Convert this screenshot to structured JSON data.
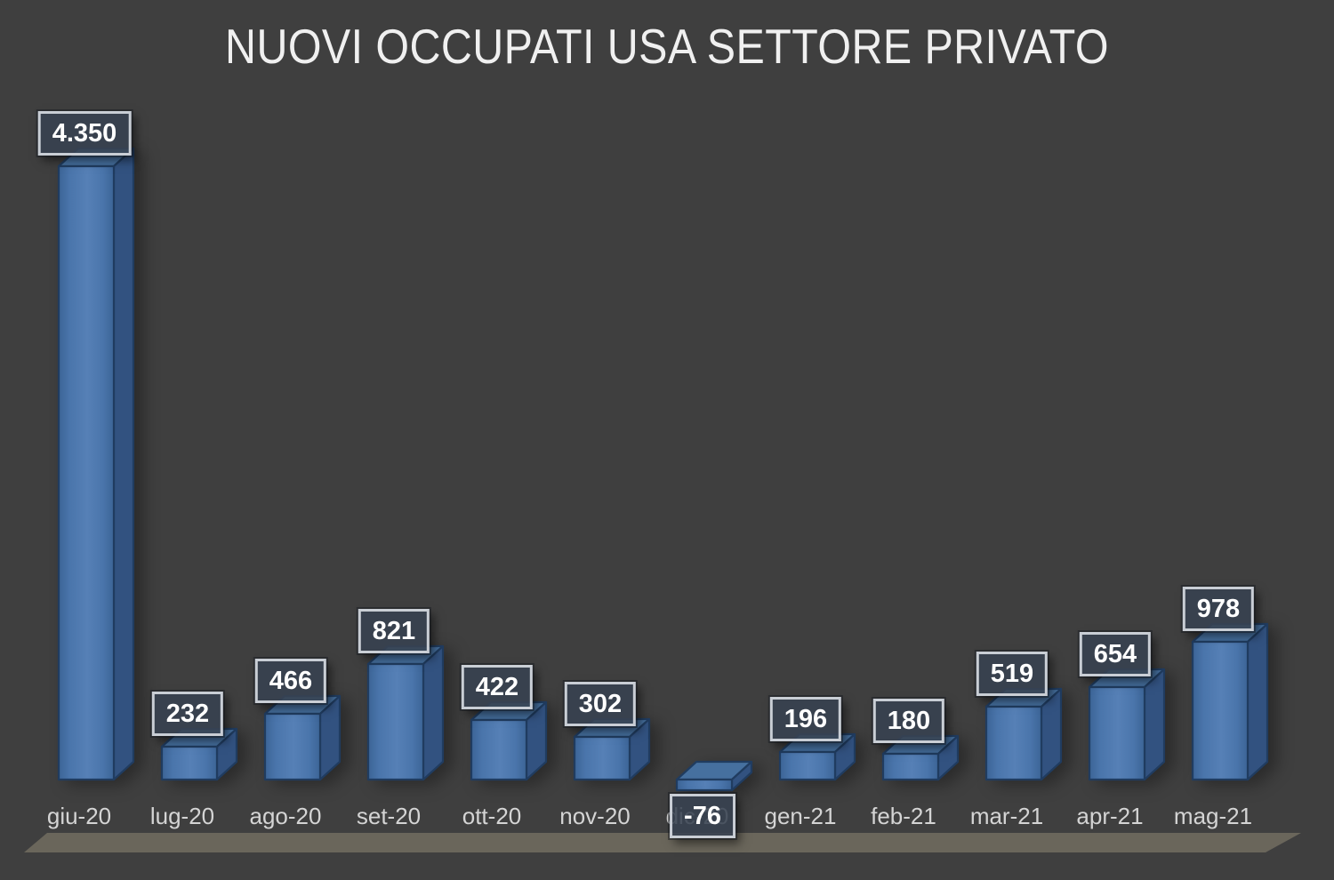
{
  "title": "NUOVI OCCUPATI USA SETTORE PRIVATO",
  "chart_data": {
    "type": "bar",
    "style_3d": true,
    "title": "NUOVI OCCUPATI USA SETTORE PRIVATO",
    "xlabel": "",
    "ylabel": "",
    "legend": "none",
    "grid": false,
    "categories": [
      "giu-20",
      "lug-20",
      "ago-20",
      "set-20",
      "ott-20",
      "nov-20",
      "dic-20",
      "gen-21",
      "feb-21",
      "mar-21",
      "apr-21",
      "mag-21"
    ],
    "values": [
      4350,
      232,
      466,
      821,
      422,
      302,
      -76,
      196,
      180,
      519,
      654,
      978
    ],
    "value_labels": [
      "4.350",
      "232",
      "466",
      "821",
      "422",
      "302",
      "-76",
      "196",
      "180",
      "519",
      "654",
      "978"
    ]
  },
  "colors": {
    "background": "#3f3f3f",
    "floor": "#6a665b",
    "bar_front": "#4a75ab",
    "bar_front_light": "#5680b6",
    "bar_front_dark": "#3c6496",
    "bar_top": "#46709f",
    "bar_side": "#325280",
    "bar_outline": "#203c60",
    "value_box_bg": "rgba(56,66,81,0.88)",
    "value_box_border": "#c9ced5",
    "value_text": "#ffffff",
    "category_text": "#d4d4d4",
    "title_text": "#f0f0f0"
  }
}
